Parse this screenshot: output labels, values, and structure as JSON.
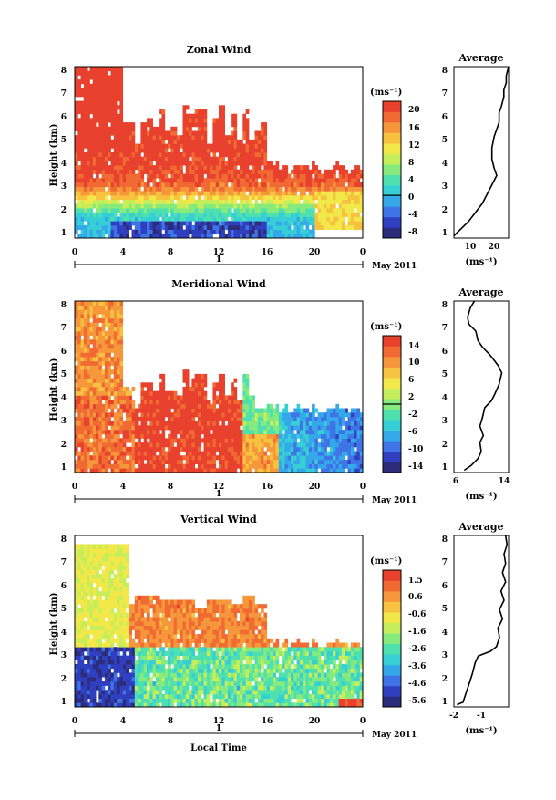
{
  "colors": {
    "zonal_scale": [
      "#2c2c7a",
      "#2f3fbf",
      "#3f74e6",
      "#35a8ea",
      "#37cfd6",
      "#4fe0b0",
      "#86ea7c",
      "#c6ee5a",
      "#f3e849",
      "#f6c23f",
      "#f5973a",
      "#f16a33",
      "#e8412e"
    ],
    "vertical_scale": [
      "#2c2c7a",
      "#2f3fbf",
      "#3f74e6",
      "#35a8ea",
      "#37cfd6",
      "#4fe0b0",
      "#86ea7c",
      "#c6ee5a",
      "#f3e849",
      "#f6c23f",
      "#f5973a",
      "#f16a33",
      "#e8412e"
    ]
  },
  "xaxis": {
    "ticks": [
      "0",
      "4",
      "8",
      "12",
      "16",
      "20",
      "0"
    ],
    "day_label": "1",
    "month_label": "May 2011",
    "bottom_label": "Local Time"
  },
  "chart_data": [
    {
      "type": "heatmap",
      "title": "Zonal Wind",
      "ylabel": "Height (km)",
      "yticks": [
        "1",
        "2",
        "3",
        "4",
        "5",
        "6",
        "7",
        "8"
      ],
      "ylim": [
        0.6,
        8
      ],
      "xlim": [
        0,
        24
      ],
      "colorbar_label": "(ms⁻¹)",
      "colorbar_ticks": [
        "20",
        "16",
        "12",
        "8",
        "4",
        "0",
        "-4",
        "-8"
      ],
      "colorbar_range": [
        -10,
        22
      ],
      "zero_contour": true
    },
    {
      "type": "line",
      "title": "Average",
      "xlabel": "(ms⁻¹)",
      "xticks": [
        "10",
        "20"
      ],
      "yticks": [
        "1",
        "2",
        "3",
        "4",
        "5",
        "6",
        "7",
        "8"
      ],
      "xlim": [
        3,
        26
      ],
      "ylim": [
        0.6,
        8
      ],
      "x": [
        3,
        5,
        9,
        12,
        15,
        17,
        19,
        20,
        21,
        20,
        19,
        19,
        20,
        21,
        22,
        22,
        23,
        24,
        24,
        25,
        25,
        26
      ],
      "y": [
        0.7,
        0.9,
        1.3,
        1.7,
        2.1,
        2.5,
        2.9,
        3.1,
        3.3,
        3.6,
        4.0,
        4.5,
        5.0,
        5.3,
        5.6,
        6.0,
        6.3,
        6.7,
        7.0,
        7.3,
        7.6,
        8.0
      ]
    },
    {
      "type": "heatmap",
      "title": "Meridional Wind",
      "ylabel": "Height (km)",
      "yticks": [
        "1",
        "2",
        "3",
        "4",
        "5",
        "6",
        "7",
        "8"
      ],
      "ylim": [
        0.6,
        8
      ],
      "xlim": [
        0,
        24
      ],
      "colorbar_label": "(ms⁻¹)",
      "colorbar_ticks": [
        "14",
        "10",
        "6",
        "2",
        "-2",
        "-6",
        "-10",
        "-14"
      ],
      "colorbar_range": [
        -16,
        16
      ],
      "zero_contour": true
    },
    {
      "type": "line",
      "title": "Average",
      "xlabel": "(ms⁻¹)",
      "xticks": [
        "6",
        "14"
      ],
      "yticks": [
        "1",
        "2",
        "3",
        "4",
        "5",
        "6",
        "7",
        "8"
      ],
      "xlim": [
        6,
        14
      ],
      "ylim": [
        0.6,
        8
      ],
      "x": [
        7.5,
        8.5,
        9.5,
        10.0,
        9.8,
        10.3,
        9.8,
        10.2,
        10.5,
        11.5,
        12.0,
        12.6,
        13.0,
        12.5,
        12.0,
        11.2,
        10.2,
        9.5,
        9.2,
        8.2,
        8.0,
        8.4,
        9.0
      ],
      "y": [
        0.7,
        0.9,
        1.2,
        1.5,
        1.9,
        2.2,
        2.6,
        3.0,
        3.4,
        3.7,
        4.0,
        4.4,
        4.9,
        5.2,
        5.4,
        5.7,
        6.0,
        6.3,
        6.7,
        7.0,
        7.3,
        7.7,
        8.0
      ]
    },
    {
      "type": "heatmap",
      "title": "Vertical Wind",
      "ylabel": "Height (km)",
      "yticks": [
        "1",
        "2",
        "3",
        "4",
        "5",
        "6",
        "7",
        "8"
      ],
      "ylim": [
        0.6,
        8
      ],
      "xlim": [
        0,
        24
      ],
      "colorbar_label": "(ms⁻¹)",
      "colorbar_ticks": [
        "1.5",
        "0.6",
        "-0.6",
        "-1.6",
        "-2.6",
        "-3.6",
        "-4.6",
        "-5.6"
      ],
      "colorbar_range": [
        -6,
        2
      ],
      "zero_contour": false
    },
    {
      "type": "line",
      "title": "Average",
      "xlabel": "(ms⁻¹)",
      "xticks": [
        "-2",
        "-1"
      ],
      "yticks": [
        "1",
        "2",
        "3",
        "4",
        "5",
        "6",
        "7",
        "8"
      ],
      "xlim": [
        -2.2,
        -0.4
      ],
      "ylim": [
        0.6,
        8
      ],
      "x": [
        -2.1,
        -1.9,
        -1.8,
        -1.7,
        -1.6,
        -1.5,
        -1.4,
        -1.0,
        -0.8,
        -0.7,
        -0.75,
        -0.6,
        -0.7,
        -0.55,
        -0.65,
        -0.5,
        -0.6,
        -0.5,
        -0.55,
        -0.45,
        -0.5
      ],
      "y": [
        0.7,
        0.8,
        1.2,
        1.6,
        2.0,
        2.5,
        2.8,
        3.0,
        3.2,
        3.6,
        4.0,
        4.4,
        4.8,
        5.2,
        5.6,
        6.0,
        6.4,
        6.8,
        7.2,
        7.6,
        8.0
      ]
    }
  ]
}
